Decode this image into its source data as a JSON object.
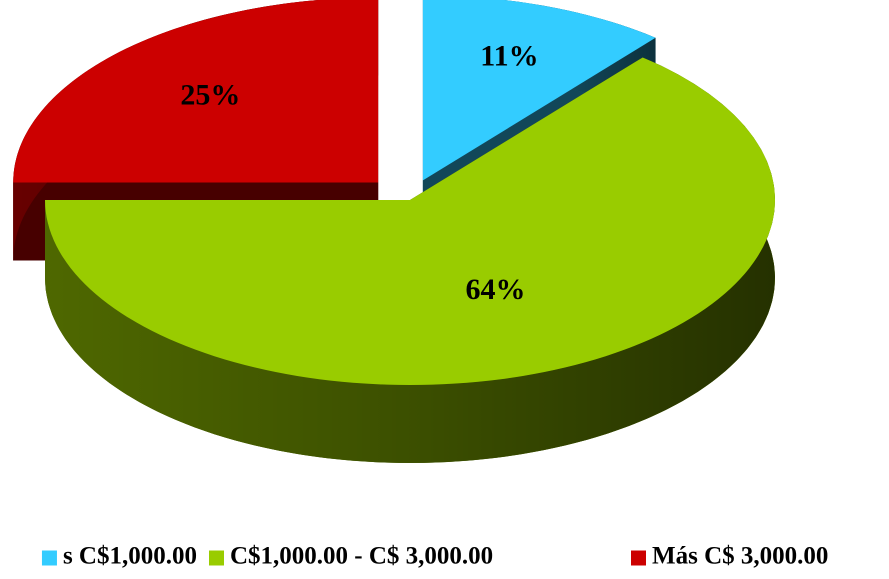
{
  "chart_data": {
    "type": "pie",
    "categories": [
      "s C$1,000.00",
      "C$1,000.00 - C$ 3,000.00",
      "Más C$ 3,000.00"
    ],
    "values": [
      11,
      64,
      25
    ],
    "value_labels": [
      "11%",
      "64%",
      "25%"
    ],
    "colors": [
      "#33ccff",
      "#99cc00",
      "#cc0000"
    ]
  }
}
